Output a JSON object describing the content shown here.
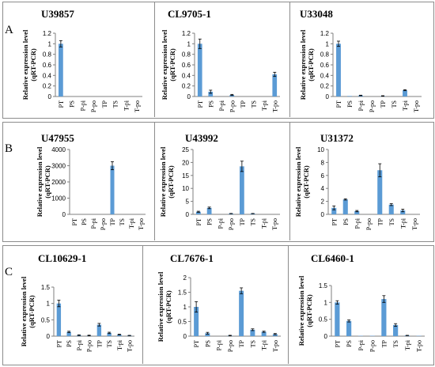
{
  "row_labels": [
    "A",
    "B",
    "C"
  ],
  "categories": [
    "PT",
    "PS",
    "P-pi",
    "P-po",
    "TP",
    "TS",
    "T-pi",
    "T-po"
  ],
  "ylabel_line1": "Relative expression level",
  "ylabel_line2": "(qRT-PCR)",
  "bar_color": "#5b9bd5",
  "chart_data": [
    {
      "type": "bar",
      "title": "U39857",
      "ylabel": "Relative expression level (qRT-PCR)",
      "categories": [
        "PT",
        "PS",
        "P-pi",
        "P-po",
        "TP",
        "TS",
        "T-pi",
        "T-po"
      ],
      "ylim": [
        0,
        1.2
      ],
      "yticks": [
        0,
        0.2,
        0.4,
        0.6,
        0.8,
        1,
        1.2
      ],
      "values": [
        1.0,
        0,
        0,
        0,
        0,
        0,
        0,
        0
      ],
      "errors": [
        0.06,
        0,
        0,
        0,
        0,
        0,
        0,
        0
      ]
    },
    {
      "type": "bar",
      "title": "CL9705-1",
      "ylabel": "Relative expression level (qRT-PCR)",
      "categories": [
        "PT",
        "PS",
        "P-pi",
        "P-po",
        "TP",
        "TS",
        "T-pi",
        "T-po"
      ],
      "ylim": [
        0,
        1.2
      ],
      "yticks": [
        0,
        0.2,
        0.4,
        0.6,
        0.8,
        1,
        1.2
      ],
      "values": [
        1.0,
        0.09,
        0,
        0.03,
        0,
        0,
        0,
        0.42
      ],
      "errors": [
        0.09,
        0.03,
        0,
        0.01,
        0,
        0,
        0,
        0.04
      ]
    },
    {
      "type": "bar",
      "title": "U33048",
      "ylabel": "Relative expression level (qRT-PCR)",
      "categories": [
        "PT",
        "PS",
        "P-pi",
        "P-po",
        "TP",
        "TS",
        "T-pi",
        "T-po"
      ],
      "ylim": [
        0,
        1.2
      ],
      "yticks": [
        0,
        0.2,
        0.4,
        0.6,
        0.8,
        1,
        1.2
      ],
      "values": [
        1.0,
        0.01,
        0.02,
        0,
        0.01,
        0,
        0.12,
        0
      ],
      "errors": [
        0.05,
        0,
        0.005,
        0,
        0.005,
        0,
        0.01,
        0
      ]
    },
    {
      "type": "bar",
      "title": "U47955",
      "ylabel": "Relative expression level (qRT-PCR)",
      "categories": [
        "PT",
        "PS",
        "P-pi",
        "P-po",
        "TP",
        "TS",
        "T-pi",
        "T-po"
      ],
      "ylim": [
        0,
        4000
      ],
      "yticks": [
        0,
        1000,
        2000,
        3000,
        4000
      ],
      "values": [
        0,
        0,
        0,
        0,
        3000,
        0,
        0,
        0
      ],
      "errors": [
        0,
        0,
        0,
        0,
        250,
        0,
        0,
        0
      ]
    },
    {
      "type": "bar",
      "title": "U43992",
      "ylabel": "Relative expression level (qRT-PCR)",
      "categories": [
        "PT",
        "PS",
        "P-pi",
        "P-po",
        "TP",
        "TS",
        "T-pi",
        "T-po"
      ],
      "ylim": [
        0,
        25
      ],
      "yticks": [
        0,
        5,
        10,
        15,
        20,
        25
      ],
      "values": [
        1.0,
        2.5,
        0,
        0.3,
        18.5,
        0.3,
        0,
        0
      ],
      "errors": [
        0.2,
        0.3,
        0,
        0.05,
        2.0,
        0.05,
        0,
        0
      ]
    },
    {
      "type": "bar",
      "title": "U31372",
      "ylabel": "Relative expression level (qRT-PCR)",
      "categories": [
        "PT",
        "PS",
        "P-pi",
        "P-po",
        "TP",
        "TS",
        "T-pi",
        "T-po"
      ],
      "ylim": [
        0,
        10
      ],
      "yticks": [
        0,
        2,
        4,
        6,
        8,
        10
      ],
      "values": [
        1.0,
        2.3,
        0.5,
        0,
        6.8,
        1.5,
        0.6,
        0
      ],
      "errors": [
        0.3,
        0.1,
        0.1,
        0,
        1.0,
        0.15,
        0.2,
        0
      ]
    },
    {
      "type": "bar",
      "title": "CL10629-1",
      "ylabel": "Relative expression level (qRT-PCR)",
      "categories": [
        "PT",
        "PS",
        "P-pi",
        "P-po",
        "TP",
        "TS",
        "T-pi",
        "T-po"
      ],
      "ylim": [
        0,
        1.5
      ],
      "yticks": [
        0,
        0.5,
        1,
        1.5
      ],
      "values": [
        1.0,
        0.13,
        0.03,
        0.02,
        0.35,
        0.1,
        0.05,
        0.02
      ],
      "errors": [
        0.1,
        0.02,
        0.01,
        0.01,
        0.04,
        0.02,
        0.01,
        0.005
      ]
    },
    {
      "type": "bar",
      "title": "CL7676-1",
      "ylabel": "Relative expression level (qRT-PCR)",
      "categories": [
        "PT",
        "PS",
        "P-pi",
        "P-po",
        "TP",
        "TS",
        "T-pi",
        "T-po"
      ],
      "ylim": [
        0,
        2
      ],
      "yticks": [
        0,
        0.5,
        1,
        1.5,
        2
      ],
      "values": [
        1.0,
        0.1,
        0,
        0.02,
        1.55,
        0.22,
        0.15,
        0.07
      ],
      "errors": [
        0.18,
        0.03,
        0,
        0.01,
        0.1,
        0.03,
        0.02,
        0.02
      ]
    },
    {
      "type": "bar",
      "title": "CL6460-1",
      "ylabel": "Relative expression level (qRT-PCR)",
      "categories": [
        "PT",
        "PS",
        "P-pi",
        "P-po",
        "TP",
        "TS",
        "T-pi",
        "T-po"
      ],
      "ylim": [
        0,
        1.5
      ],
      "yticks": [
        0,
        0.5,
        1,
        1.5
      ],
      "values": [
        1.0,
        0.45,
        0.01,
        0.01,
        1.1,
        0.33,
        0.02,
        0.01
      ],
      "errors": [
        0.05,
        0.03,
        0,
        0,
        0.1,
        0.04,
        0.005,
        0
      ]
    }
  ]
}
